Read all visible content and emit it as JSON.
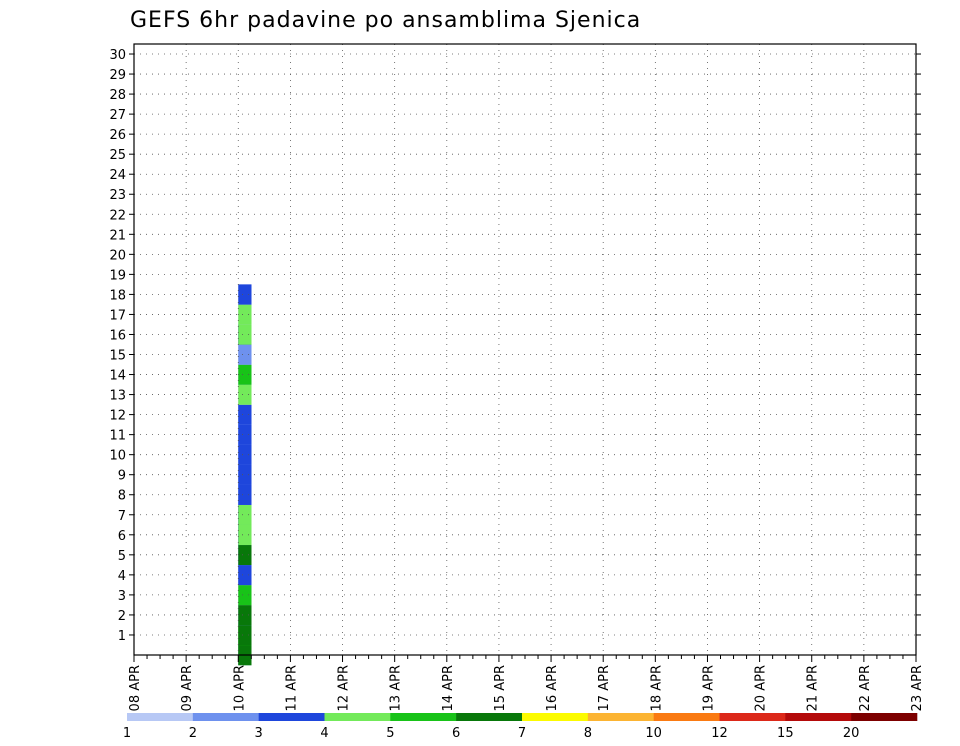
{
  "chart_data": {
    "type": "heatmap",
    "title": "GEFS 6hr padavine po ansamblima Sjenica",
    "y_ticks": [
      1,
      2,
      3,
      4,
      5,
      6,
      7,
      8,
      9,
      10,
      11,
      12,
      13,
      14,
      15,
      16,
      17,
      18,
      19,
      20,
      21,
      22,
      23,
      24,
      25,
      26,
      27,
      28,
      29,
      30
    ],
    "ylim": [
      0,
      30.5
    ],
    "x_ticks": [
      "08 APR",
      "09 APR",
      "10 APR",
      "11 APR",
      "12 APR",
      "13 APR",
      "14 APR",
      "15 APR",
      "16 APR",
      "17 APR",
      "18 APR",
      "19 APR",
      "20 APR",
      "21 APR",
      "22 APR",
      "23 APR"
    ],
    "steps_per_day": 4,
    "grid": "dotted",
    "colorbar": {
      "position": "bottom",
      "labels": [
        "1",
        "2",
        "3",
        "4",
        "5",
        "6",
        "7",
        "8",
        "10",
        "12",
        "15",
        "20"
      ],
      "colors": [
        "#b7c8f5",
        "#6e91ee",
        "#1e46dc",
        "#73ea5a",
        "#18c318",
        "#08780a",
        "#fcfb00",
        "#fcb432",
        "#fa7a12",
        "#dc2819",
        "#b40a0a",
        "#7d0000"
      ]
    },
    "cells": [
      [
        8,
        0,
        2
      ],
      [
        8,
        0,
        3
      ],
      [
        8,
        0,
        5
      ],
      [
        8,
        1,
        4
      ],
      [
        8,
        1,
        5
      ],
      [
        8,
        2,
        1
      ],
      [
        8,
        2,
        5
      ],
      [
        8,
        3,
        0
      ],
      [
        8,
        3,
        4
      ],
      [
        8,
        4,
        0
      ],
      [
        8,
        4,
        1
      ],
      [
        8,
        4,
        2
      ],
      [
        8,
        5,
        0
      ],
      [
        8,
        5,
        1
      ],
      [
        8,
        5,
        5
      ],
      [
        8,
        6,
        0
      ],
      [
        8,
        6,
        1
      ],
      [
        8,
        6,
        2
      ],
      [
        8,
        6,
        3
      ],
      [
        8,
        7,
        0
      ],
      [
        8,
        7,
        1
      ],
      [
        8,
        7,
        2
      ],
      [
        8,
        7,
        3
      ],
      [
        8,
        8,
        0
      ],
      [
        8,
        8,
        1
      ],
      [
        8,
        8,
        2
      ],
      [
        8,
        9,
        1
      ],
      [
        8,
        9,
        2
      ],
      [
        8,
        10,
        1
      ],
      [
        8,
        10,
        2
      ],
      [
        8,
        11,
        1
      ],
      [
        8,
        11,
        2
      ],
      [
        8,
        12,
        0
      ],
      [
        8,
        12,
        1
      ],
      [
        8,
        12,
        2
      ],
      [
        8,
        13,
        0
      ],
      [
        8,
        13,
        3
      ],
      [
        8,
        14,
        0
      ],
      [
        8,
        14,
        4
      ],
      [
        8,
        15,
        0
      ],
      [
        8,
        15,
        1
      ],
      [
        8,
        16,
        1
      ],
      [
        8,
        16,
        2
      ],
      [
        8,
        16,
        3
      ],
      [
        8,
        17,
        0
      ],
      [
        8,
        17,
        3
      ],
      [
        8,
        18,
        0
      ],
      [
        8,
        18,
        2
      ]
    ],
    "cell_index_order": [
      "x_step_from_08APR",
      "y_row",
      "color_index"
    ]
  }
}
